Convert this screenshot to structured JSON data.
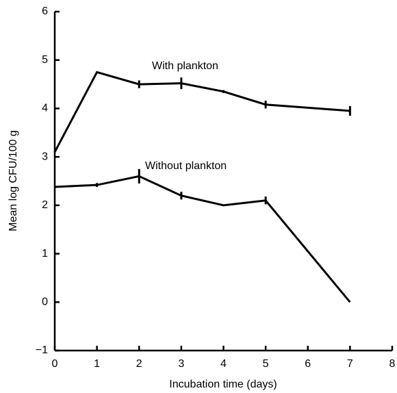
{
  "chart_data": {
    "type": "line",
    "x_label": "Incubation time (days)",
    "y_label": "Mean log CFU/100 g",
    "xlim": [
      0,
      8
    ],
    "xticks": [
      0,
      1,
      2,
      3,
      4,
      5,
      6,
      7,
      8
    ],
    "ylim": [
      -1,
      6
    ],
    "yticks": [
      {
        "value": -1,
        "label": "−1"
      },
      0,
      1,
      2,
      3,
      4,
      5,
      6
    ],
    "grid": false,
    "series": [
      {
        "name": "With plankton",
        "color": "#000000",
        "x": [
          0,
          1,
          2,
          3,
          4,
          5,
          7
        ],
        "values": [
          3.1,
          4.75,
          4.5,
          4.52,
          4.35,
          4.08,
          3.95
        ],
        "errors": [
          null,
          null,
          0.08,
          0.12,
          0.03,
          0.08,
          0.1
        ]
      },
      {
        "name": "Without plankton",
        "color": "#000000",
        "x": [
          0,
          1,
          2,
          3,
          4,
          5,
          7
        ],
        "values": [
          2.38,
          2.42,
          2.6,
          2.2,
          2.0,
          2.1,
          0.0
        ],
        "errors": [
          null,
          0.04,
          0.15,
          0.08,
          null,
          0.08,
          null
        ]
      }
    ]
  }
}
